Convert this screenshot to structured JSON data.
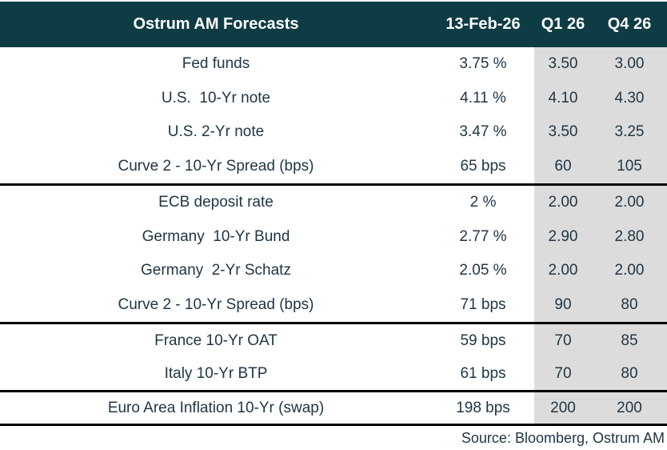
{
  "title": "Ostrum AM Forecasts",
  "columns": {
    "date": "13-Feb-26",
    "q1": "Q1 26",
    "q4": "Q4 26"
  },
  "groups": [
    {
      "rows": [
        {
          "label": "Fed funds",
          "current": "3.75 %",
          "q1": "3.50",
          "q4": "3.00"
        },
        {
          "label": "U.S.  10-Yr note",
          "current": "4.11 %",
          "q1": "4.10",
          "q4": "4.30"
        },
        {
          "label": "U.S. 2-Yr note",
          "current": "3.47 %",
          "q1": "3.50",
          "q4": "3.25"
        },
        {
          "label": "Curve 2 - 10-Yr Spread (bps)",
          "current": "65 bps",
          "q1": "60",
          "q4": "105"
        }
      ]
    },
    {
      "rows": [
        {
          "label": "ECB deposit rate",
          "current": "2 %",
          "q1": "2.00",
          "q4": "2.00"
        },
        {
          "label": "Germany  10-Yr Bund",
          "current": "2.77 %",
          "q1": "2.90",
          "q4": "2.80"
        },
        {
          "label": "Germany  2-Yr Schatz",
          "current": "2.05 %",
          "q1": "2.00",
          "q4": "2.00"
        },
        {
          "label": "Curve 2 - 10-Yr Spread (bps)",
          "current": "71 bps",
          "q1": "90",
          "q4": "80"
        }
      ]
    },
    {
      "rows": [
        {
          "label": "France 10-Yr OAT",
          "current": "59 bps",
          "q1": "70",
          "q4": "85"
        },
        {
          "label": "Italy 10-Yr BTP",
          "current": "61 bps",
          "q1": "70",
          "q4": "80"
        }
      ]
    },
    {
      "rows": [
        {
          "label": "Euro Area Inflation 10-Yr (swap)",
          "current": "198 bps",
          "q1": "200",
          "q4": "200"
        }
      ]
    }
  ],
  "footer": {
    "source": "Source: Bloomberg, Ostrum AM"
  },
  "colors": {
    "header_bg": "#0e3c45",
    "highlight_bg": "#dcdcdc",
    "text": "#213645",
    "border": "#000000"
  }
}
